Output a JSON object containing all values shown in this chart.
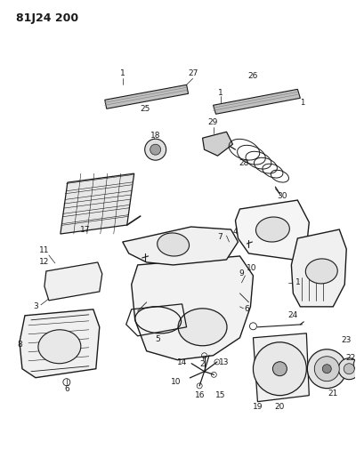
{
  "title": "81J24 200",
  "bg_color": "#ffffff",
  "lc": "#1a1a1a",
  "fig_width": 4.0,
  "fig_height": 5.33,
  "dpi": 100
}
